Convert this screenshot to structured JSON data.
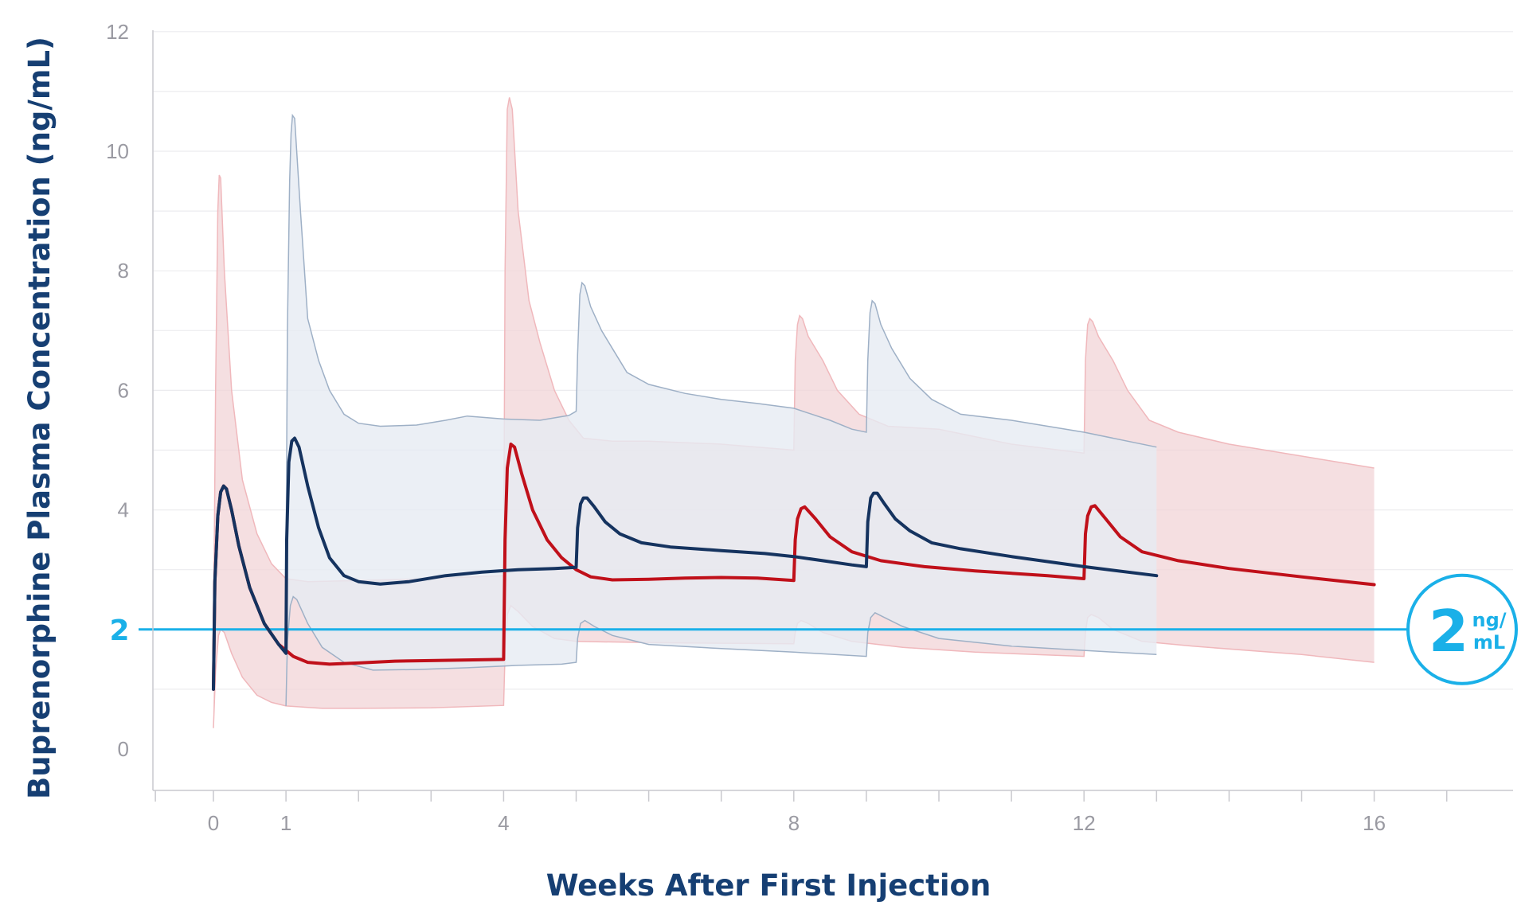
{
  "chart_data": {
    "type": "line",
    "title": "",
    "xlabel": "Weeks After First Injection",
    "ylabel": "Buprenorphine Plasma Concentration (ng/mL)",
    "xlim": [
      -0.8,
      17.95
    ],
    "ylim": [
      -0.7,
      12
    ],
    "x_ticks": [
      0,
      1,
      4,
      8,
      12,
      16
    ],
    "x_minor_ticks": [
      -0.8,
      0,
      1,
      2,
      3,
      4,
      5,
      6,
      7,
      8,
      9,
      10,
      11,
      12,
      13,
      14,
      15,
      16,
      17
    ],
    "y_ticks": [
      0,
      4,
      6,
      8,
      10,
      12
    ],
    "y_gridlines": [
      1,
      2,
      3,
      4,
      5,
      6,
      7,
      8,
      9,
      10,
      11,
      12
    ],
    "grid": true,
    "reference_line": {
      "value": 2,
      "label": "2",
      "badge_value": "2",
      "badge_unit_top": "ng/",
      "badge_unit_bottom": "mL",
      "color": "#1ab0e8"
    },
    "series": [
      {
        "color": "#c0101a",
        "band_fill": "#f2d4d7",
        "band_stroke": "#f0b8bc",
        "median": [
          [
            0,
            1
          ],
          [
            0.02,
            2.8
          ],
          [
            0.06,
            3.9
          ],
          [
            0.1,
            4.3
          ],
          [
            0.14,
            4.4
          ],
          [
            0.18,
            4.35
          ],
          [
            0.25,
            4
          ],
          [
            0.35,
            3.4
          ],
          [
            0.5,
            2.7
          ],
          [
            0.7,
            2.1
          ],
          [
            0.9,
            1.75
          ],
          [
            1.1,
            1.55
          ],
          [
            1.3,
            1.45
          ],
          [
            1.6,
            1.42
          ],
          [
            2,
            1.44
          ],
          [
            2.5,
            1.47
          ],
          [
            3,
            1.48
          ],
          [
            3.5,
            1.49
          ],
          [
            4,
            1.5
          ],
          [
            4.02,
            3.5
          ],
          [
            4.05,
            4.7
          ],
          [
            4.1,
            5.1
          ],
          [
            4.15,
            5.05
          ],
          [
            4.25,
            4.6
          ],
          [
            4.4,
            4
          ],
          [
            4.6,
            3.5
          ],
          [
            4.8,
            3.2
          ],
          [
            5,
            3
          ],
          [
            5.2,
            2.88
          ],
          [
            5.5,
            2.83
          ],
          [
            6,
            2.84
          ],
          [
            6.5,
            2.86
          ],
          [
            7,
            2.87
          ],
          [
            7.5,
            2.86
          ],
          [
            8,
            2.82
          ],
          [
            8.02,
            3.5
          ],
          [
            8.05,
            3.85
          ],
          [
            8.1,
            4.02
          ],
          [
            8.15,
            4.05
          ],
          [
            8.3,
            3.85
          ],
          [
            8.5,
            3.55
          ],
          [
            8.8,
            3.3
          ],
          [
            9.2,
            3.15
          ],
          [
            9.8,
            3.05
          ],
          [
            10.5,
            2.98
          ],
          [
            11.5,
            2.9
          ],
          [
            12,
            2.85
          ],
          [
            12.02,
            3.6
          ],
          [
            12.05,
            3.9
          ],
          [
            12.1,
            4.05
          ],
          [
            12.15,
            4.07
          ],
          [
            12.3,
            3.85
          ],
          [
            12.5,
            3.55
          ],
          [
            12.8,
            3.3
          ],
          [
            13.3,
            3.15
          ],
          [
            14,
            3.02
          ],
          [
            15,
            2.88
          ],
          [
            16,
            2.75
          ]
        ],
        "upper": [
          [
            0,
            1.7
          ],
          [
            0.03,
            6
          ],
          [
            0.06,
            9
          ],
          [
            0.08,
            9.6
          ],
          [
            0.1,
            9.55
          ],
          [
            0.15,
            8
          ],
          [
            0.25,
            6
          ],
          [
            0.4,
            4.5
          ],
          [
            0.6,
            3.6
          ],
          [
            0.8,
            3.1
          ],
          [
            1,
            2.85
          ],
          [
            1.3,
            2.8
          ],
          [
            2,
            2.82
          ],
          [
            3,
            2.85
          ],
          [
            4,
            2.9
          ],
          [
            4.02,
            8
          ],
          [
            4.05,
            10.7
          ],
          [
            4.08,
            10.9
          ],
          [
            4.12,
            10.7
          ],
          [
            4.2,
            9
          ],
          [
            4.35,
            7.5
          ],
          [
            4.5,
            6.8
          ],
          [
            4.7,
            6
          ],
          [
            4.9,
            5.5
          ],
          [
            5.1,
            5.2
          ],
          [
            5.5,
            5.15
          ],
          [
            6,
            5.15
          ],
          [
            7,
            5.1
          ],
          [
            7.5,
            5.05
          ],
          [
            8,
            5
          ],
          [
            8.02,
            6.5
          ],
          [
            8.05,
            7.1
          ],
          [
            8.08,
            7.25
          ],
          [
            8.12,
            7.2
          ],
          [
            8.2,
            6.9
          ],
          [
            8.4,
            6.5
          ],
          [
            8.6,
            6
          ],
          [
            8.9,
            5.6
          ],
          [
            9.3,
            5.4
          ],
          [
            10,
            5.35
          ],
          [
            11,
            5.1
          ],
          [
            12,
            4.95
          ],
          [
            12.02,
            6.5
          ],
          [
            12.05,
            7.1
          ],
          [
            12.08,
            7.2
          ],
          [
            12.12,
            7.15
          ],
          [
            12.2,
            6.9
          ],
          [
            12.4,
            6.5
          ],
          [
            12.6,
            6
          ],
          [
            12.9,
            5.5
          ],
          [
            13.3,
            5.3
          ],
          [
            14,
            5.1
          ],
          [
            15,
            4.9
          ],
          [
            16,
            4.7
          ]
        ],
        "lower": [
          [
            0,
            0.35
          ],
          [
            0.03,
            1.3
          ],
          [
            0.07,
            1.9
          ],
          [
            0.1,
            2
          ],
          [
            0.15,
            1.95
          ],
          [
            0.25,
            1.6
          ],
          [
            0.4,
            1.2
          ],
          [
            0.6,
            0.9
          ],
          [
            0.8,
            0.78
          ],
          [
            1,
            0.72
          ],
          [
            1.5,
            0.68
          ],
          [
            2,
            0.68
          ],
          [
            3,
            0.69
          ],
          [
            4,
            0.73
          ],
          [
            4.02,
            1.6
          ],
          [
            4.05,
            2.25
          ],
          [
            4.1,
            2.4
          ],
          [
            4.2,
            2.3
          ],
          [
            4.4,
            2.05
          ],
          [
            4.7,
            1.85
          ],
          [
            5,
            1.8
          ],
          [
            6,
            1.78
          ],
          [
            7,
            1.77
          ],
          [
            8,
            1.76
          ],
          [
            8.02,
            1.95
          ],
          [
            8.05,
            2.1
          ],
          [
            8.1,
            2.15
          ],
          [
            8.2,
            2.1
          ],
          [
            8.4,
            1.95
          ],
          [
            8.8,
            1.8
          ],
          [
            9.5,
            1.7
          ],
          [
            10.5,
            1.62
          ],
          [
            12,
            1.55
          ],
          [
            12.02,
            1.95
          ],
          [
            12.05,
            2.2
          ],
          [
            12.1,
            2.25
          ],
          [
            12.2,
            2.2
          ],
          [
            12.4,
            2
          ],
          [
            12.8,
            1.8
          ],
          [
            13.5,
            1.72
          ],
          [
            15,
            1.58
          ],
          [
            16,
            1.45
          ]
        ]
      },
      {
        "color": "#15335f",
        "band_fill": "#e6ebf2",
        "band_stroke": "#9eb0c6",
        "median": [
          [
            0,
            1
          ],
          [
            0.02,
            2.8
          ],
          [
            0.06,
            3.9
          ],
          [
            0.1,
            4.3
          ],
          [
            0.14,
            4.4
          ],
          [
            0.18,
            4.35
          ],
          [
            0.25,
            4
          ],
          [
            0.35,
            3.4
          ],
          [
            0.5,
            2.7
          ],
          [
            0.7,
            2.1
          ],
          [
            0.9,
            1.75
          ],
          [
            1,
            1.6
          ],
          [
            1.01,
            3.5
          ],
          [
            1.04,
            4.8
          ],
          [
            1.08,
            5.15
          ],
          [
            1.12,
            5.2
          ],
          [
            1.18,
            5.05
          ],
          [
            1.3,
            4.4
          ],
          [
            1.45,
            3.7
          ],
          [
            1.6,
            3.2
          ],
          [
            1.8,
            2.9
          ],
          [
            2,
            2.8
          ],
          [
            2.3,
            2.76
          ],
          [
            2.7,
            2.8
          ],
          [
            3.2,
            2.9
          ],
          [
            3.7,
            2.96
          ],
          [
            4.2,
            3
          ],
          [
            4.7,
            3.02
          ],
          [
            5,
            3.04
          ],
          [
            5.02,
            3.7
          ],
          [
            5.06,
            4.1
          ],
          [
            5.1,
            4.2
          ],
          [
            5.15,
            4.2
          ],
          [
            5.25,
            4.05
          ],
          [
            5.4,
            3.8
          ],
          [
            5.6,
            3.6
          ],
          [
            5.9,
            3.45
          ],
          [
            6.3,
            3.38
          ],
          [
            7,
            3.32
          ],
          [
            7.6,
            3.27
          ],
          [
            8,
            3.22
          ],
          [
            8.4,
            3.15
          ],
          [
            8.8,
            3.08
          ],
          [
            9,
            3.05
          ],
          [
            9.02,
            3.8
          ],
          [
            9.06,
            4.2
          ],
          [
            9.1,
            4.28
          ],
          [
            9.15,
            4.28
          ],
          [
            9.25,
            4.1
          ],
          [
            9.4,
            3.85
          ],
          [
            9.6,
            3.65
          ],
          [
            9.9,
            3.45
          ],
          [
            10.3,
            3.35
          ],
          [
            11,
            3.22
          ],
          [
            12,
            3.05
          ],
          [
            13,
            2.9
          ]
        ],
        "upper": [
          [
            1,
            2.9
          ],
          [
            1.02,
            7
          ],
          [
            1.05,
            9.5
          ],
          [
            1.07,
            10.3
          ],
          [
            1.09,
            10.6
          ],
          [
            1.12,
            10.55
          ],
          [
            1.2,
            9
          ],
          [
            1.3,
            7.2
          ],
          [
            1.45,
            6.5
          ],
          [
            1.6,
            6
          ],
          [
            1.8,
            5.6
          ],
          [
            2,
            5.45
          ],
          [
            2.3,
            5.4
          ],
          [
            2.8,
            5.42
          ],
          [
            3.2,
            5.5
          ],
          [
            3.5,
            5.57
          ],
          [
            4,
            5.52
          ],
          [
            4.5,
            5.5
          ],
          [
            4.9,
            5.58
          ],
          [
            5,
            5.65
          ],
          [
            5.02,
            6.6
          ],
          [
            5.05,
            7.6
          ],
          [
            5.08,
            7.8
          ],
          [
            5.12,
            7.75
          ],
          [
            5.2,
            7.4
          ],
          [
            5.35,
            7
          ],
          [
            5.5,
            6.7
          ],
          [
            5.7,
            6.3
          ],
          [
            6,
            6.1
          ],
          [
            6.5,
            5.95
          ],
          [
            7,
            5.85
          ],
          [
            7.5,
            5.78
          ],
          [
            8,
            5.7
          ],
          [
            8.5,
            5.5
          ],
          [
            8.8,
            5.35
          ],
          [
            9,
            5.3
          ],
          [
            9.02,
            6.5
          ],
          [
            9.05,
            7.3
          ],
          [
            9.08,
            7.5
          ],
          [
            9.12,
            7.45
          ],
          [
            9.2,
            7.1
          ],
          [
            9.35,
            6.7
          ],
          [
            9.6,
            6.2
          ],
          [
            9.9,
            5.85
          ],
          [
            10.3,
            5.6
          ],
          [
            11,
            5.5
          ],
          [
            12,
            5.3
          ],
          [
            13,
            5.05
          ]
        ],
        "lower": [
          [
            1,
            0.72
          ],
          [
            1.02,
            1.8
          ],
          [
            1.06,
            2.4
          ],
          [
            1.1,
            2.55
          ],
          [
            1.15,
            2.5
          ],
          [
            1.3,
            2.1
          ],
          [
            1.5,
            1.7
          ],
          [
            1.8,
            1.45
          ],
          [
            2.2,
            1.32
          ],
          [
            2.8,
            1.33
          ],
          [
            3.5,
            1.36
          ],
          [
            4.2,
            1.4
          ],
          [
            4.8,
            1.42
          ],
          [
            5,
            1.45
          ],
          [
            5.02,
            1.85
          ],
          [
            5.06,
            2.1
          ],
          [
            5.12,
            2.15
          ],
          [
            5.25,
            2.05
          ],
          [
            5.5,
            1.9
          ],
          [
            6,
            1.75
          ],
          [
            7,
            1.68
          ],
          [
            8,
            1.62
          ],
          [
            9,
            1.55
          ],
          [
            9.02,
            1.95
          ],
          [
            9.06,
            2.2
          ],
          [
            9.12,
            2.28
          ],
          [
            9.25,
            2.2
          ],
          [
            9.5,
            2.05
          ],
          [
            10,
            1.85
          ],
          [
            11,
            1.72
          ],
          [
            12,
            1.65
          ],
          [
            13,
            1.58
          ]
        ]
      }
    ]
  }
}
